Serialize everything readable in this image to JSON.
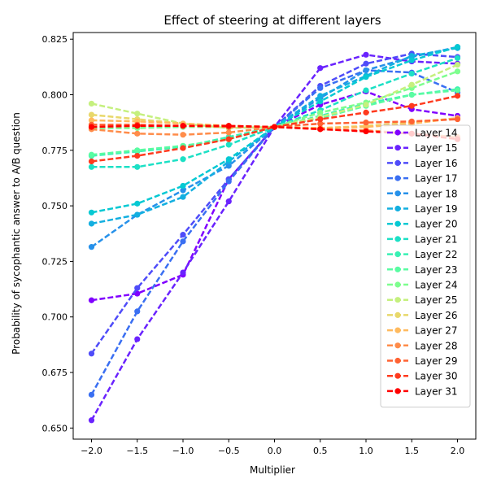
{
  "chart_data": {
    "type": "line",
    "title": "Effect of steering at different layers",
    "xlabel": "Multiplier",
    "ylabel": "Probability of sycophantic answer to A/B question",
    "xlim": [
      -2.2,
      2.2
    ],
    "ylim": [
      0.645,
      0.828
    ],
    "x": [
      -2.0,
      -1.5,
      -1.0,
      -0.5,
      0.0,
      0.5,
      1.0,
      1.5,
      2.0
    ],
    "xticks": [
      "−2.0",
      "−1.5",
      "−1.0",
      "−0.5",
      "0.0",
      "0.5",
      "1.0",
      "1.5",
      "2.0"
    ],
    "yticks": [
      "0.650",
      "0.675",
      "0.700",
      "0.725",
      "0.750",
      "0.775",
      "0.800",
      "0.825"
    ],
    "ytick_values": [
      0.65,
      0.675,
      0.7,
      0.725,
      0.75,
      0.775,
      0.8,
      0.825
    ],
    "grid": false,
    "legend_position": "right",
    "series": [
      {
        "name": "Layer 14",
        "color": "#8000ff",
        "values": [
          0.7075,
          0.7105,
          0.719,
          0.762,
          0.7855,
          0.7955,
          0.8015,
          0.7935,
          0.7905
        ]
      },
      {
        "name": "Layer 15",
        "color": "#6a23fe",
        "values": [
          0.6535,
          0.69,
          0.72,
          0.752,
          0.7855,
          0.812,
          0.818,
          0.815,
          0.814
        ]
      },
      {
        "name": "Layer 16",
        "color": "#4f4cf9",
        "values": [
          0.6835,
          0.713,
          0.737,
          0.762,
          0.7855,
          0.804,
          0.814,
          0.8185,
          0.817
        ]
      },
      {
        "name": "Layer 17",
        "color": "#3a6ff2",
        "values": [
          0.665,
          0.7025,
          0.734,
          0.761,
          0.7855,
          0.803,
          0.811,
          0.81,
          0.801
        ]
      },
      {
        "name": "Layer 18",
        "color": "#2691ea",
        "values": [
          0.7315,
          0.746,
          0.757,
          0.768,
          0.7855,
          0.7985,
          0.811,
          0.817,
          0.8215
        ]
      },
      {
        "name": "Layer 19",
        "color": "#13afe0",
        "values": [
          0.742,
          0.746,
          0.754,
          0.77,
          0.7855,
          0.7995,
          0.8085,
          0.8175,
          0.821
        ]
      },
      {
        "name": "Layer 20",
        "color": "#05c9d3",
        "values": [
          0.747,
          0.751,
          0.759,
          0.771,
          0.7855,
          0.797,
          0.808,
          0.8155,
          0.8215
        ]
      },
      {
        "name": "Layer 21",
        "color": "#1ce0c5",
        "values": [
          0.7675,
          0.7675,
          0.771,
          0.7775,
          0.7855,
          0.793,
          0.802,
          0.8095,
          0.8165
        ]
      },
      {
        "name": "Layer 22",
        "color": "#38f1b4",
        "values": [
          0.7725,
          0.7745,
          0.7765,
          0.781,
          0.7855,
          0.7905,
          0.796,
          0.8,
          0.8025
        ]
      },
      {
        "name": "Layer 23",
        "color": "#59fca2",
        "values": [
          0.773,
          0.775,
          0.777,
          0.78,
          0.7855,
          0.7895,
          0.795,
          0.8,
          0.802
        ]
      },
      {
        "name": "Layer 24",
        "color": "#7efe8e",
        "values": [
          0.785,
          0.785,
          0.7855,
          0.7855,
          0.7855,
          0.792,
          0.7965,
          0.803,
          0.8105
        ]
      },
      {
        "name": "Layer 25",
        "color": "#c5f07e",
        "values": [
          0.796,
          0.7915,
          0.787,
          0.785,
          0.7855,
          0.79,
          0.7955,
          0.8045,
          0.8135
        ]
      },
      {
        "name": "Layer 26",
        "color": "#e8d86a",
        "values": [
          0.791,
          0.789,
          0.787,
          0.786,
          0.7855,
          0.785,
          0.786,
          0.7875,
          0.7895
        ]
      },
      {
        "name": "Layer 27",
        "color": "#ffba5e",
        "values": [
          0.7885,
          0.788,
          0.787,
          0.786,
          0.7855,
          0.785,
          0.7855,
          0.787,
          0.7895
        ]
      },
      {
        "name": "Layer 28",
        "color": "#ff8c4a",
        "values": [
          0.7845,
          0.7825,
          0.782,
          0.783,
          0.7855,
          0.7845,
          0.784,
          0.7825,
          0.781
        ]
      },
      {
        "name": "Layer 29",
        "color": "#ff6232",
        "values": [
          0.7865,
          0.7865,
          0.786,
          0.7855,
          0.7855,
          0.787,
          0.7875,
          0.788,
          0.789
        ]
      },
      {
        "name": "Layer 30",
        "color": "#ff3a1e",
        "values": [
          0.77,
          0.7725,
          0.776,
          0.78,
          0.7855,
          0.789,
          0.792,
          0.795,
          0.7995
        ]
      },
      {
        "name": "Layer 31",
        "color": "#ff0000",
        "values": [
          0.7855,
          0.786,
          0.786,
          0.786,
          0.7855,
          0.7845,
          0.7835,
          0.7825,
          0.78
        ]
      }
    ]
  }
}
